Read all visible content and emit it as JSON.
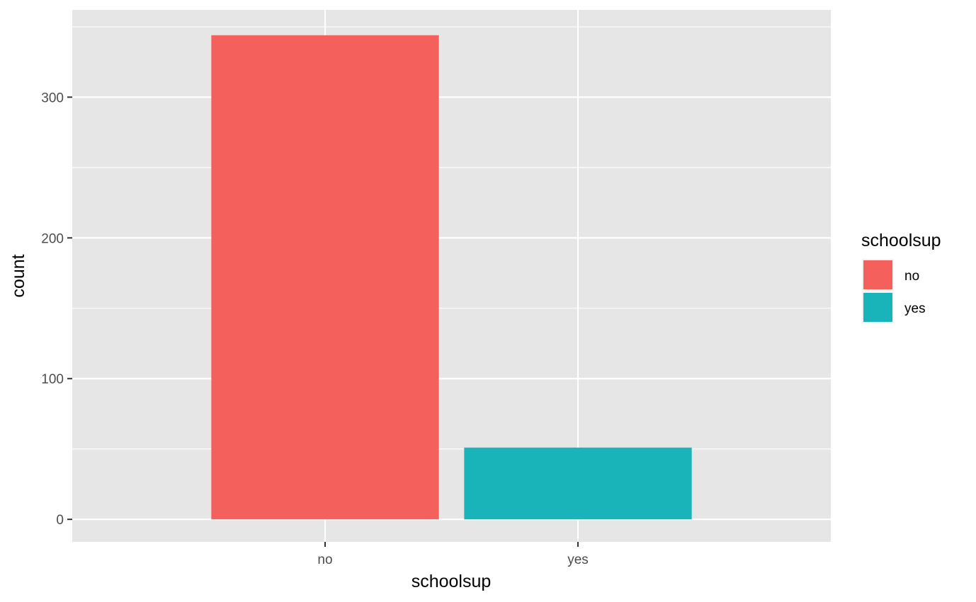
{
  "chart_data": {
    "type": "bar",
    "categories": [
      "no",
      "yes"
    ],
    "values": [
      344,
      51
    ],
    "xlabel": "schoolsup",
    "ylabel": "count",
    "ylim": [
      -16,
      362
    ],
    "yticks": [
      0,
      100,
      200,
      300
    ],
    "y_minor_ticks": [
      50,
      150,
      250,
      350
    ],
    "grid": true,
    "legend": {
      "title": "schoolsup",
      "position": "right",
      "items": [
        {
          "label": "no",
          "color": "#F8766D"
        },
        {
          "label": "yes",
          "color": "#00BFC4"
        }
      ]
    },
    "colors": {
      "panel": "#e6e6e6",
      "grid": "#ffffff",
      "bars": [
        "#F4615C",
        "#18B4BA"
      ]
    }
  }
}
